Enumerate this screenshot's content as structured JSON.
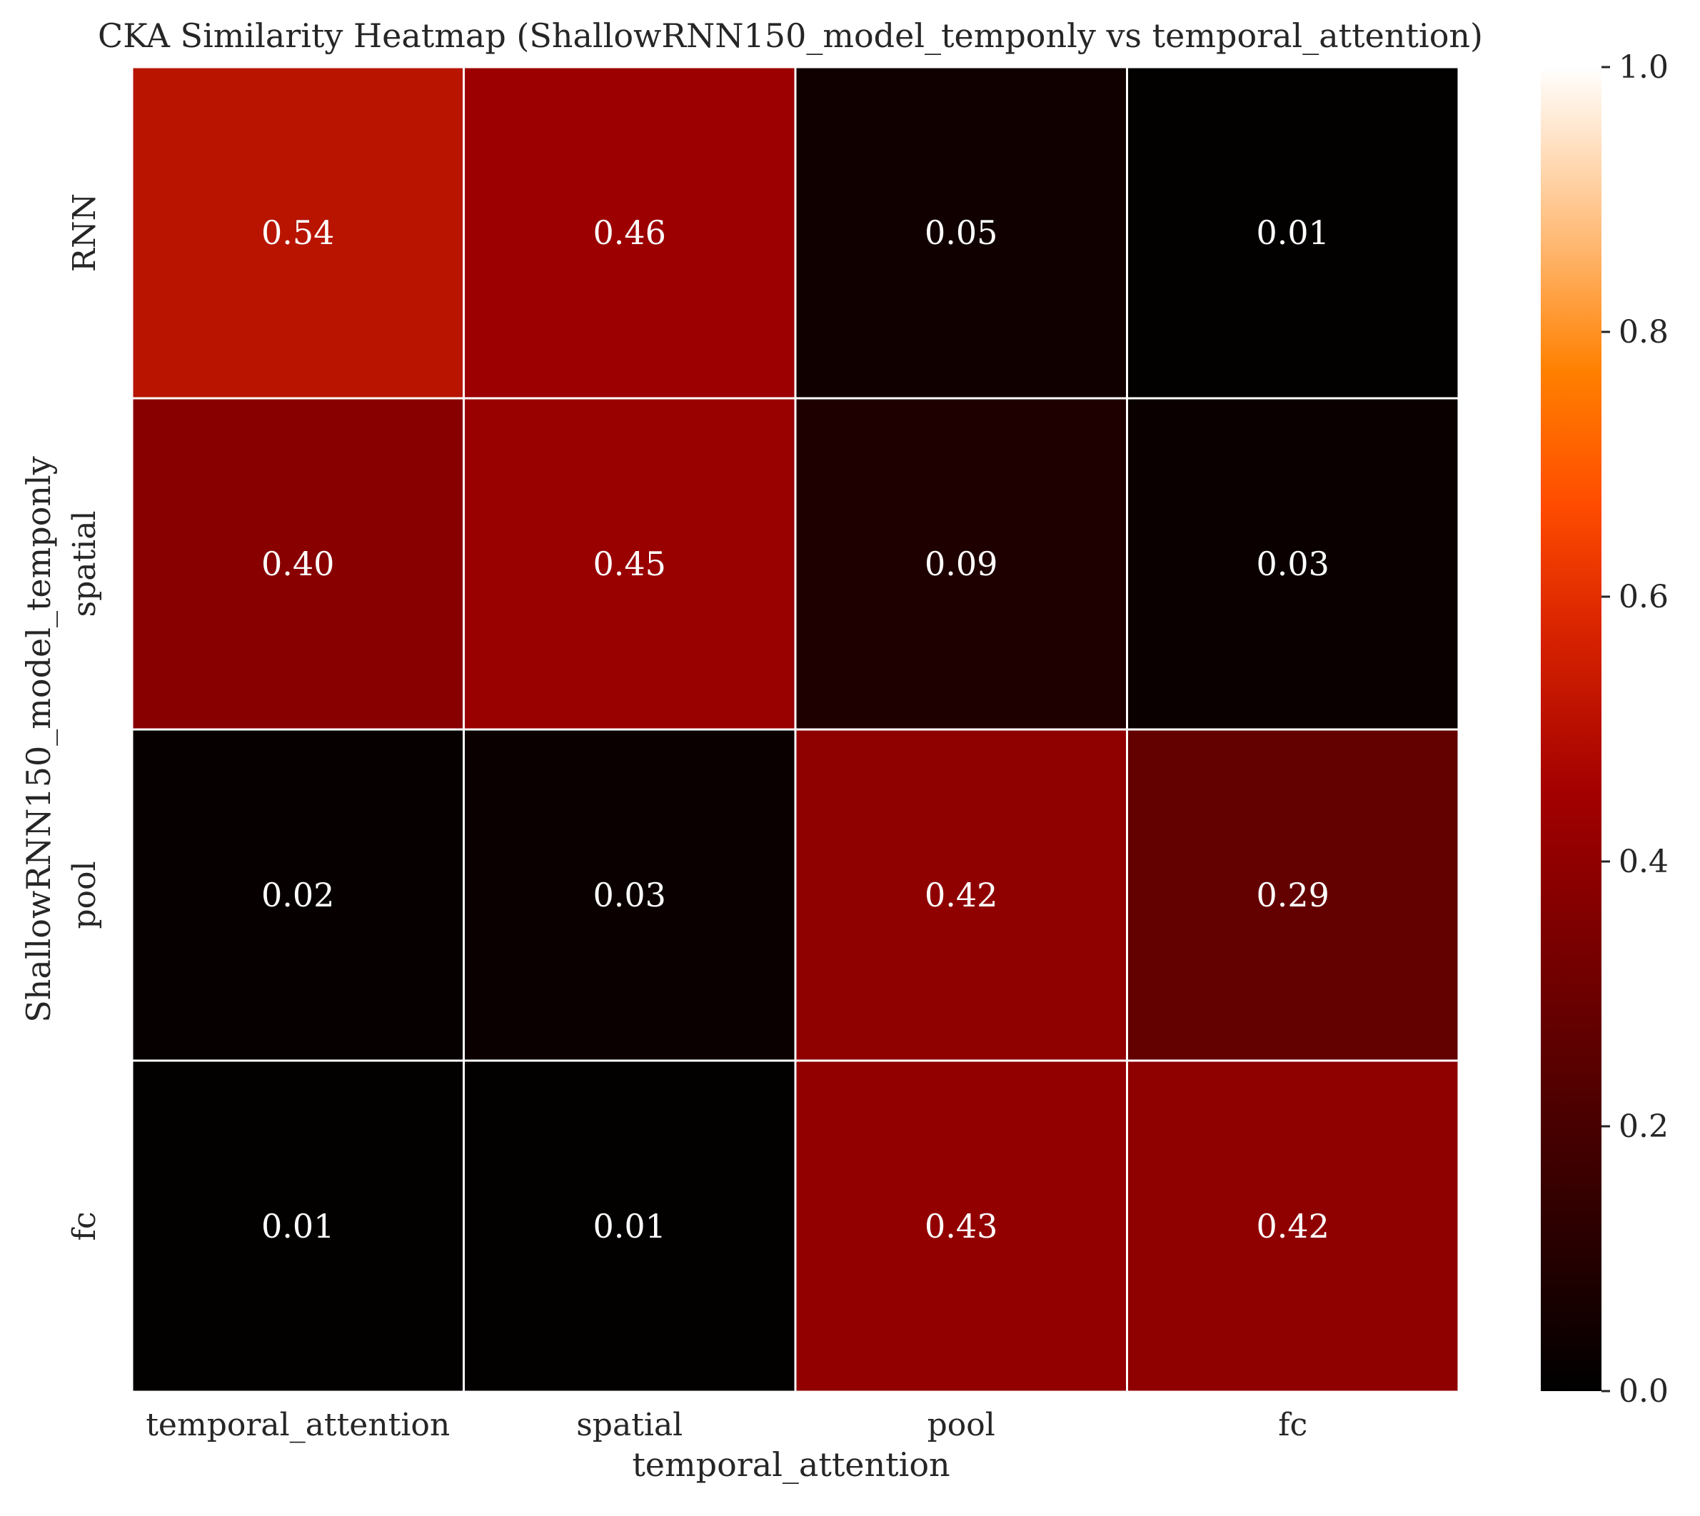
{
  "chart_data": {
    "type": "heatmap",
    "title": "CKA Similarity Heatmap (ShallowRNN150_model_temponly vs temporal_attention)",
    "xlabel": "temporal_attention",
    "ylabel": "ShallowRNN150_model_temponly",
    "x_categories": [
      "temporal_attention",
      "spatial",
      "pool",
      "fc"
    ],
    "y_categories": [
      "RNN",
      "spatial",
      "pool",
      "fc"
    ],
    "values": [
      [
        0.54,
        0.46,
        0.05,
        0.01
      ],
      [
        0.4,
        0.45,
        0.09,
        0.03
      ],
      [
        0.02,
        0.03,
        0.42,
        0.29
      ],
      [
        0.01,
        0.01,
        0.43,
        0.42
      ]
    ],
    "annotation_format": "0.00",
    "colormap": "gist_heat",
    "colorbar": {
      "range": [
        0.0,
        1.0
      ],
      "ticks": [
        0.0,
        0.2,
        0.4,
        0.6,
        0.8,
        1.0
      ],
      "tick_labels": [
        "0.0",
        "0.2",
        "0.4",
        "0.6",
        "0.8",
        "1.0"
      ]
    },
    "grid_line_color": "#ffffff",
    "annotation_color": "#ffffff"
  }
}
